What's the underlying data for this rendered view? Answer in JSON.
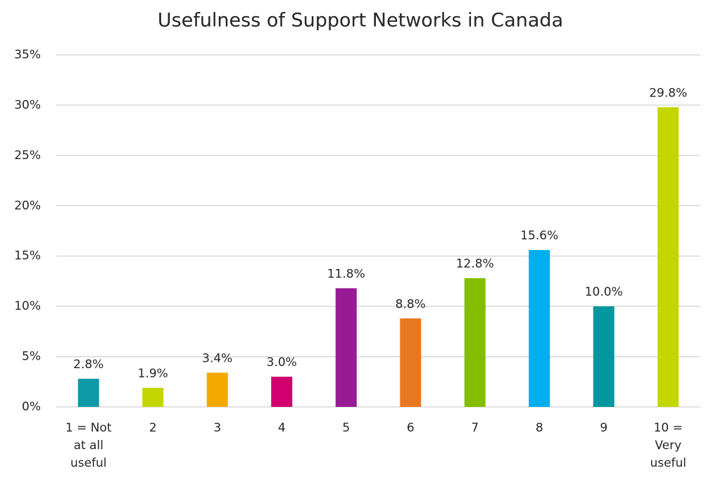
{
  "chart_data": {
    "type": "bar",
    "title": "Usefulness of Support Networks in Canada",
    "categories": [
      "1 = Not at all useful",
      "2",
      "3",
      "4",
      "5",
      "6",
      "7",
      "8",
      "9",
      "10 = Very useful"
    ],
    "values": [
      2.8,
      1.9,
      3.4,
      3.0,
      11.8,
      8.8,
      12.8,
      15.6,
      10.0,
      29.8
    ],
    "value_labels": [
      "2.8%",
      "1.9%",
      "3.4%",
      "3.0%",
      "11.8%",
      "8.8%",
      "12.8%",
      "15.6%",
      "10.0%",
      "29.8%"
    ],
    "colors": [
      "#0e9aa7",
      "#c4d600",
      "#f2a900",
      "#d0006f",
      "#971b94",
      "#e87722",
      "#84bd00",
      "#00aeef",
      "#00989e",
      "#c4d600"
    ],
    "ylim": [
      0,
      35
    ],
    "yticks": [
      {
        "value": 0,
        "label": "0%"
      },
      {
        "value": 5,
        "label": "5%"
      },
      {
        "value": 10,
        "label": "10%"
      },
      {
        "value": 15,
        "label": "15%"
      },
      {
        "value": 20,
        "label": "20%"
      },
      {
        "value": 25,
        "label": "25%"
      },
      {
        "value": 30,
        "label": "30%"
      },
      {
        "value": 35,
        "label": "35%"
      }
    ],
    "grid": true
  }
}
